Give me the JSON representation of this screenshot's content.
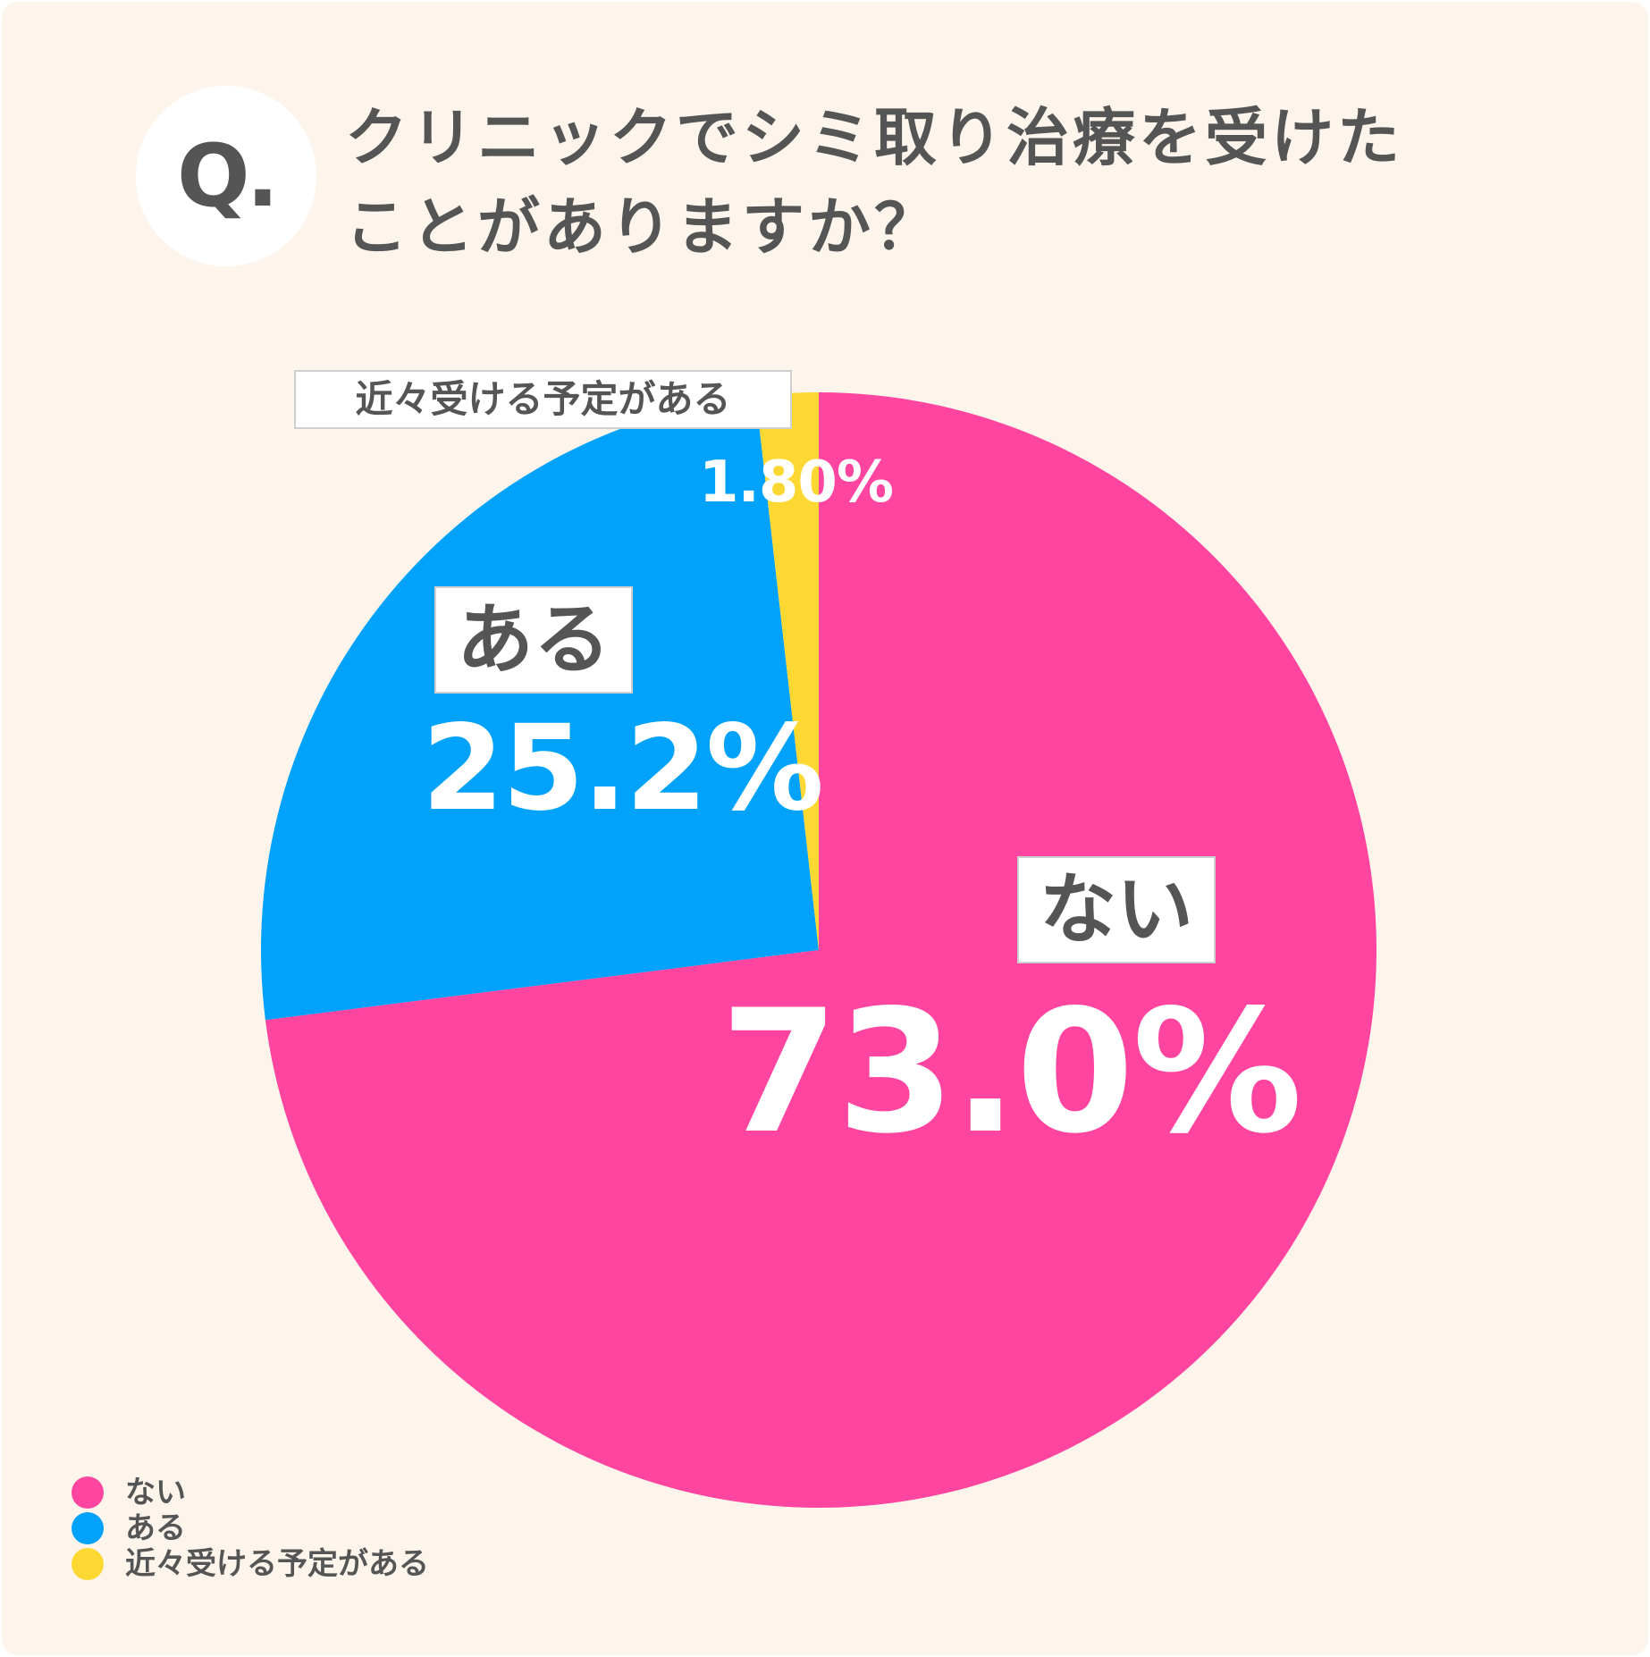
{
  "question": {
    "badge": "Q.",
    "line1": "クリニックでシミ取り治療を受けた",
    "line2": "ことがありますか？"
  },
  "colors": {
    "background": "#fdf5ec",
    "nai": "#ff459f",
    "aru": "#00a2fb",
    "soon": "#fed832"
  },
  "chart_data": {
    "type": "pie",
    "title": "クリニックでシミ取り治療を受けたことがありますか？",
    "slices": [
      {
        "name": "ない",
        "value": 73.0,
        "label": "73.0%",
        "color": "#ff459f"
      },
      {
        "name": "ある",
        "value": 25.2,
        "label": "25.2%",
        "color": "#00a2fb"
      },
      {
        "name": "近々受ける予定がある",
        "value": 1.8,
        "label": "1.80%",
        "color": "#fed832"
      }
    ],
    "start_angle_deg": 0,
    "direction": "clockwise",
    "legend": {
      "position": "bottom-left",
      "items": [
        "ない",
        "ある",
        "近々受ける予定がある"
      ]
    }
  }
}
